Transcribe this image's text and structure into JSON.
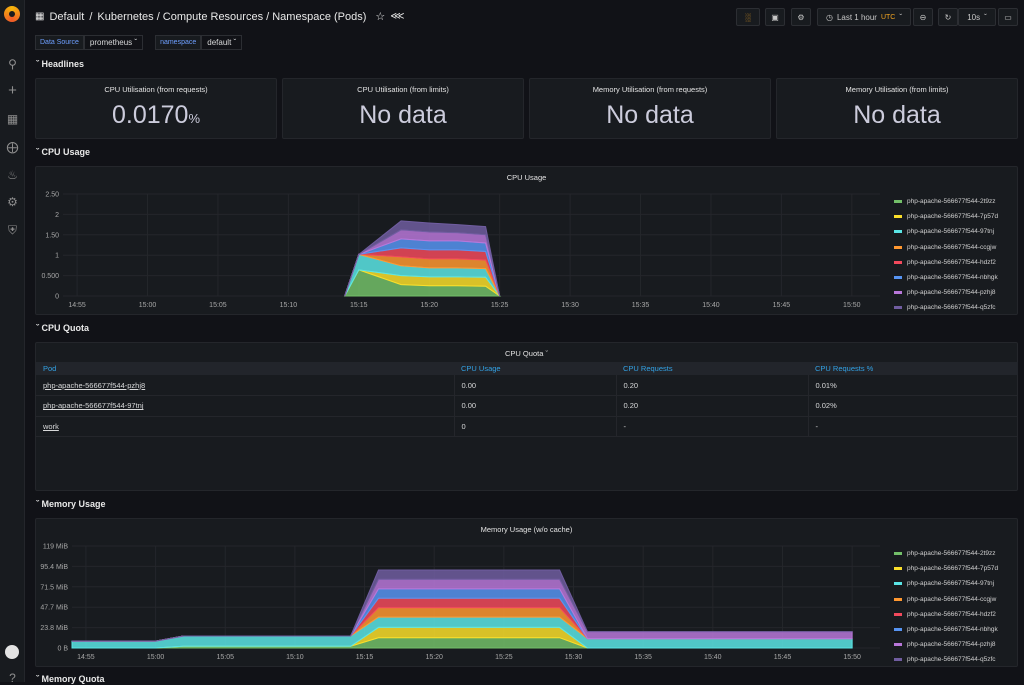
{
  "breadcrumb": {
    "folder": "Default",
    "sep": "/",
    "title": "Kubernetes / Compute Resources / Namespace (Pods)"
  },
  "toolbar": {
    "time_range": "Last 1 hour",
    "timezone": "UTC",
    "refresh": "10s"
  },
  "variables": [
    {
      "label": "Data Source",
      "value": "prometheus"
    },
    {
      "label": "namespace",
      "value": "default"
    }
  ],
  "rows": {
    "headlines": "Headlines",
    "cpu_usage": "CPU Usage",
    "cpu_quota": "CPU Quota",
    "memory_usage": "Memory Usage",
    "memory_quota": "Memory Quota"
  },
  "stats": [
    {
      "title": "CPU Utilisation (from requests)",
      "value": "0.0170",
      "unit": "%"
    },
    {
      "title": "CPU Utilisation (from limits)",
      "value": "No data",
      "unit": ""
    },
    {
      "title": "Memory Utilisation (from requests)",
      "value": "No data",
      "unit": ""
    },
    {
      "title": "Memory Utilisation (from limits)",
      "value": "No data",
      "unit": ""
    }
  ],
  "cpu_panel_title": "CPU Usage",
  "quota_panel_title": "CPU Quota",
  "memory_panel_title": "Memory Usage (w/o cache)",
  "quota_table": {
    "headers": [
      "Pod",
      "CPU Usage",
      "CPU Requests",
      "CPU Requests %"
    ],
    "rows": [
      [
        "php-apache-566677f544-pzhj8",
        "0.00",
        "0.20",
        "0.01%"
      ],
      [
        "php-apache-566677f544-97tnj",
        "0.00",
        "0.20",
        "0.02%"
      ],
      [
        "work",
        "0",
        "-",
        "-"
      ]
    ]
  },
  "legend": [
    {
      "name": "php-apache-566677f544-2t9zz",
      "color": "#73bf69"
    },
    {
      "name": "php-apache-566677f544-7p57d",
      "color": "#fade2a"
    },
    {
      "name": "php-apache-566677f544-97tnj",
      "color": "#5ae5e5"
    },
    {
      "name": "php-apache-566677f544-ccgjw",
      "color": "#ff9830"
    },
    {
      "name": "php-apache-566677f544-hdzf2",
      "color": "#f2495c"
    },
    {
      "name": "php-apache-566677f544-nbhgk",
      "color": "#5794f2"
    },
    {
      "name": "php-apache-566677f544-pzhj8",
      "color": "#b877d9"
    },
    {
      "name": "php-apache-566677f544-q5zfc",
      "color": "#705da0"
    }
  ],
  "chart_data": [
    {
      "type": "area",
      "title": "CPU Usage",
      "stacked": true,
      "x_ticks": [
        "14:55",
        "15:00",
        "15:05",
        "15:10",
        "15:15",
        "15:20",
        "15:25",
        "15:30",
        "15:35",
        "15:40",
        "15:45",
        "15:50"
      ],
      "y_ticks": [
        "0",
        "0.500",
        "1",
        "1.50",
        "2",
        "2.50"
      ],
      "ylim": [
        0,
        2.5
      ],
      "x": [
        "15:14",
        "15:15",
        "15:18",
        "15:20",
        "15:22",
        "15:24",
        "15:25"
      ],
      "series": [
        {
          "name": "php-apache-566677f544-2t9zz",
          "values": [
            0,
            0.64,
            0.28,
            0.25,
            0.25,
            0.24,
            0
          ]
        },
        {
          "name": "php-apache-566677f544-7p57d",
          "values": [
            0,
            0,
            0.22,
            0.22,
            0.22,
            0.22,
            0
          ]
        },
        {
          "name": "php-apache-566677f544-97tnj",
          "values": [
            0,
            0.38,
            0.24,
            0.22,
            0.22,
            0.21,
            0
          ]
        },
        {
          "name": "php-apache-566677f544-ccgjw",
          "values": [
            0,
            0,
            0.22,
            0.22,
            0.22,
            0.21,
            0
          ]
        },
        {
          "name": "php-apache-566677f544-hdzf2",
          "values": [
            0,
            0,
            0.22,
            0.22,
            0.22,
            0.21,
            0
          ]
        },
        {
          "name": "php-apache-566677f544-nbhgk",
          "values": [
            0,
            0,
            0.22,
            0.22,
            0.22,
            0.21,
            0
          ]
        },
        {
          "name": "php-apache-566677f544-pzhj8",
          "values": [
            0,
            0,
            0.22,
            0.22,
            0.2,
            0.2,
            0
          ]
        },
        {
          "name": "php-apache-566677f544-q5zfc",
          "values": [
            0,
            0,
            0.22,
            0.22,
            0.2,
            0.2,
            0
          ]
        }
      ]
    },
    {
      "type": "area",
      "title": "Memory Usage (w/o cache)",
      "stacked": true,
      "x_ticks": [
        "14:55",
        "15:00",
        "15:05",
        "15:10",
        "15:15",
        "15:20",
        "15:25",
        "15:30",
        "15:35",
        "15:40",
        "15:45",
        "15:50"
      ],
      "y_ticks": [
        "0 B",
        "23.8 MiB",
        "47.7 MiB",
        "71.5 MiB",
        "95.4 MiB",
        "119 MiB"
      ],
      "ylim": [
        0,
        119
      ],
      "x": [
        "14:54",
        "15:00",
        "15:02",
        "15:14",
        "15:16",
        "15:29",
        "15:31",
        "15:50"
      ],
      "series": [
        {
          "name": "php-apache-566677f544-2t9zz",
          "values": [
            0,
            0,
            2,
            2,
            12,
            12,
            0,
            0
          ]
        },
        {
          "name": "php-apache-566677f544-7p57d",
          "values": [
            0,
            0,
            0,
            0,
            12,
            12,
            0,
            0
          ]
        },
        {
          "name": "php-apache-566677f544-97tnj",
          "values": [
            8,
            8,
            12,
            12,
            12,
            12,
            11,
            11
          ]
        },
        {
          "name": "php-apache-566677f544-ccgjw",
          "values": [
            0,
            0,
            0,
            0,
            11,
            11,
            0,
            0
          ]
        },
        {
          "name": "php-apache-566677f544-hdzf2",
          "values": [
            0,
            0,
            0,
            0,
            11,
            11,
            0,
            0
          ]
        },
        {
          "name": "php-apache-566677f544-nbhgk",
          "values": [
            0,
            0,
            0,
            0,
            11,
            11,
            0,
            0
          ]
        },
        {
          "name": "php-apache-566677f544-pzhj8",
          "values": [
            0,
            0,
            0,
            0,
            11,
            11,
            8,
            8
          ]
        },
        {
          "name": "php-apache-566677f544-q5zfc",
          "values": [
            0,
            0,
            0,
            0,
            11,
            11,
            0,
            0
          ]
        }
      ]
    }
  ]
}
